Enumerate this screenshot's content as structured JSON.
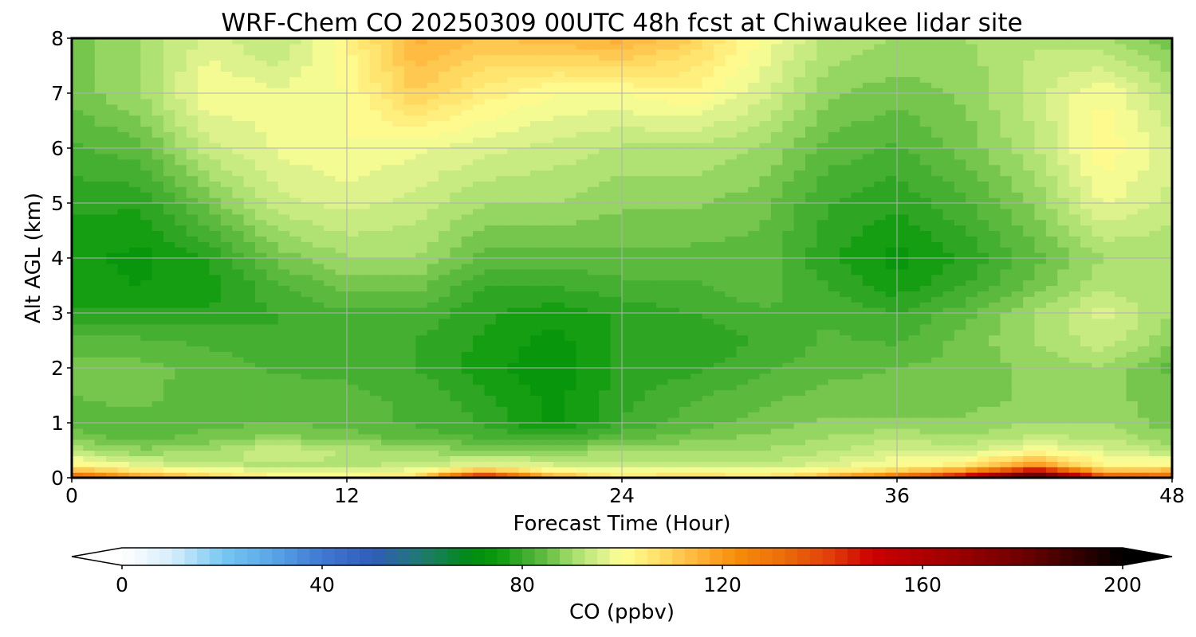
{
  "chart_data": {
    "type": "heatmap",
    "title": "WRF-Chem CO  20250309 00UTC 48h fcst at Chiwaukee lidar site",
    "xlabel": "Forecast Time (Hour)",
    "ylabel": "Alt AGL (km)",
    "xlim": [
      0,
      48
    ],
    "ylim": [
      0,
      8
    ],
    "xticks": [
      "0",
      "12",
      "24",
      "36",
      "48"
    ],
    "yticks": [
      "0",
      "1",
      "2",
      "3",
      "4",
      "5",
      "6",
      "7",
      "8"
    ],
    "grid": true,
    "colorbar": {
      "label": "CO  (ppbv)",
      "range": [
        0,
        200
      ],
      "ticks": [
        "0",
        "40",
        "80",
        "120",
        "160",
        "200"
      ],
      "extend": "both",
      "stops": [
        {
          "v": 0,
          "c": "#ffffff"
        },
        {
          "v": 10,
          "c": "#d6eefa"
        },
        {
          "v": 20,
          "c": "#78c8f2"
        },
        {
          "v": 30,
          "c": "#5aa6e6"
        },
        {
          "v": 40,
          "c": "#4078d2"
        },
        {
          "v": 50,
          "c": "#2f5cba"
        },
        {
          "v": 60,
          "c": "#1f7a6e"
        },
        {
          "v": 70,
          "c": "#008c10"
        },
        {
          "v": 75,
          "c": "#0a9a0a"
        },
        {
          "v": 80,
          "c": "#3aaa2c"
        },
        {
          "v": 85,
          "c": "#66bf44"
        },
        {
          "v": 90,
          "c": "#a4dc6c"
        },
        {
          "v": 95,
          "c": "#d2ee88"
        },
        {
          "v": 100,
          "c": "#ffff96"
        },
        {
          "v": 108,
          "c": "#ffdc64"
        },
        {
          "v": 115,
          "c": "#ffb43a"
        },
        {
          "v": 123,
          "c": "#f58c0a"
        },
        {
          "v": 132,
          "c": "#eb6e0a"
        },
        {
          "v": 142,
          "c": "#e03c0a"
        },
        {
          "v": 150,
          "c": "#cc0000"
        },
        {
          "v": 165,
          "c": "#a00000"
        },
        {
          "v": 180,
          "c": "#6e0000"
        },
        {
          "v": 195,
          "c": "#1e0000"
        },
        {
          "v": 200,
          "c": "#000000"
        }
      ]
    },
    "hours": [
      0,
      3,
      6,
      9,
      12,
      15,
      18,
      21,
      24,
      27,
      30,
      33,
      36,
      39,
      42,
      45,
      48
    ],
    "altitudes_km": [
      0,
      0.1,
      0.25,
      0.5,
      0.75,
      1,
      1.5,
      2,
      2.5,
      3,
      3.5,
      4,
      5,
      6,
      7,
      8
    ],
    "values_ppbv": [
      [
        140,
        122,
        112,
        105,
        104,
        110,
        165,
        120,
        108,
        110,
        108,
        118,
        140,
        165,
        200,
        150,
        140
      ],
      [
        118,
        108,
        102,
        98,
        98,
        100,
        120,
        104,
        100,
        102,
        100,
        105,
        112,
        125,
        165,
        115,
        118
      ],
      [
        102,
        96,
        93,
        92,
        92,
        93,
        97,
        95,
        94,
        94,
        93,
        96,
        100,
        104,
        120,
        102,
        102
      ],
      [
        92,
        88,
        90,
        95,
        92,
        90,
        87,
        88,
        90,
        90,
        90,
        92,
        95,
        94,
        100,
        96,
        92
      ],
      [
        86,
        84,
        86,
        88,
        86,
        84,
        82,
        80,
        84,
        86,
        88,
        90,
        92,
        90,
        93,
        92,
        88
      ],
      [
        84,
        84,
        84,
        85,
        84,
        82,
        80,
        74,
        80,
        84,
        86,
        88,
        88,
        88,
        90,
        90,
        86
      ],
      [
        85,
        86,
        83,
        84,
        83,
        82,
        78,
        74,
        79,
        82,
        84,
        86,
        86,
        86,
        88,
        88,
        86
      ],
      [
        86,
        86,
        84,
        82,
        82,
        80,
        76,
        73,
        78,
        79,
        82,
        84,
        85,
        86,
        88,
        90,
        84
      ],
      [
        84,
        83,
        82,
        80,
        81,
        80,
        77,
        74,
        78,
        78,
        80,
        83,
        82,
        86,
        90,
        94,
        88
      ],
      [
        78,
        78,
        78,
        80,
        82,
        82,
        78,
        76,
        78,
        80,
        82,
        82,
        80,
        84,
        90,
        96,
        90
      ],
      [
        76,
        75,
        76,
        82,
        86,
        86,
        80,
        80,
        82,
        82,
        84,
        80,
        76,
        80,
        86,
        92,
        90
      ],
      [
        76,
        74,
        78,
        86,
        90,
        90,
        84,
        84,
        84,
        84,
        84,
        78,
        74,
        78,
        84,
        90,
        90
      ],
      [
        78,
        78,
        86,
        94,
        96,
        94,
        90,
        90,
        88,
        88,
        86,
        80,
        78,
        82,
        88,
        98,
        94
      ],
      [
        82,
        84,
        94,
        98,
        100,
        98,
        96,
        94,
        92,
        92,
        90,
        84,
        82,
        86,
        92,
        102,
        96
      ],
      [
        86,
        90,
        100,
        98,
        100,
        110,
        104,
        100,
        100,
        102,
        96,
        88,
        86,
        88,
        94,
        100,
        92
      ],
      [
        86,
        90,
        96,
        92,
        102,
        116,
        112,
        114,
        116,
        110,
        100,
        92,
        90,
        90,
        92,
        90,
        86
      ]
    ]
  }
}
